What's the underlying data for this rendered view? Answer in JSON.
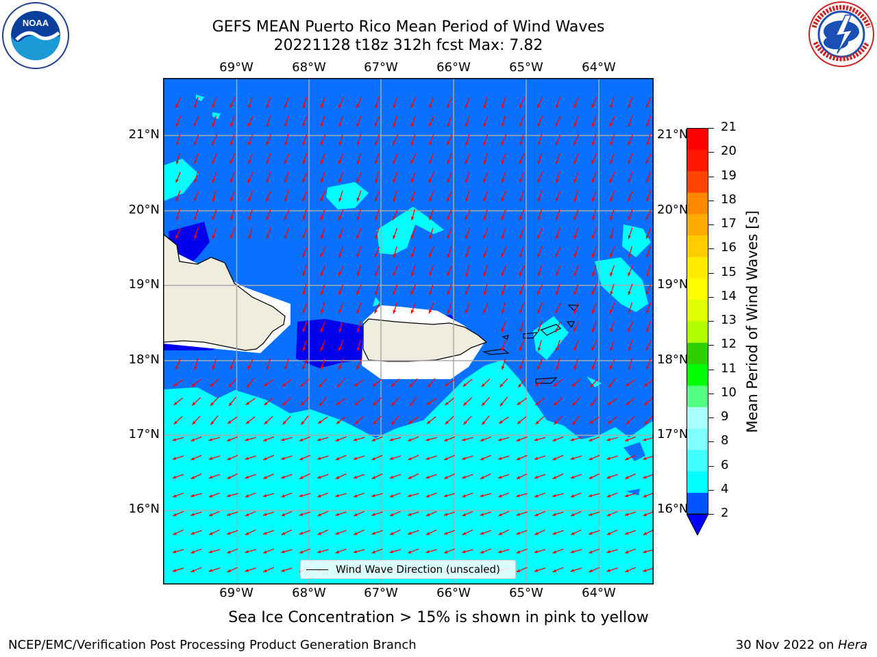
{
  "title": {
    "line1": "GEFS MEAN Puerto Rico Mean Period of Wind Waves",
    "line2": "20221128 t18z 312h fcst   Max: 7.82"
  },
  "logos": {
    "left": "noaa-logo",
    "right": "nws-logo"
  },
  "axes": {
    "lon_ticks": [
      "69°W",
      "68°W",
      "67°W",
      "66°W",
      "65°W",
      "64°W"
    ],
    "lat_ticks": [
      "21°N",
      "20°N",
      "19°N",
      "18°N",
      "17°N",
      "16°N"
    ]
  },
  "legend": {
    "label": "Wind Wave Direction (unscaled)"
  },
  "colorbar": {
    "label": "Mean Period of Wind Waves [s]",
    "ticks": [
      "2",
      "4",
      "6",
      "8",
      "9",
      "10",
      "11",
      "12",
      "13",
      "14",
      "15",
      "16",
      "17",
      "18",
      "19",
      "20",
      "21"
    ],
    "colors": [
      "#0055ff",
      "#00ffff",
      "#40ffff",
      "#80ffff",
      "#aaffff",
      "#55ff80",
      "#00ff00",
      "#30d000",
      "#b0ff00",
      "#e0ff00",
      "#ffff00",
      "#ffea00",
      "#ffcc00",
      "#ffaa00",
      "#ff8800",
      "#ff4400",
      "#ff1800",
      "#ff0000"
    ],
    "extend_color": "#0000ff"
  },
  "field_colors": {
    "level_2_4": "#0a70ff",
    "level_4_6": "#00ffff",
    "level_6_8": "#7fffff",
    "below_2": "#0000ee",
    "land": "#efedde",
    "arrow": "#ff0000"
  },
  "note": "Sea Ice Concentration > 15% is shown in pink to yellow",
  "footer": {
    "left": "NCEP/EMC/Verification Post Processing Product Generation Branch",
    "right_date": "30 Nov 2022 on ",
    "right_host": "Hera"
  }
}
